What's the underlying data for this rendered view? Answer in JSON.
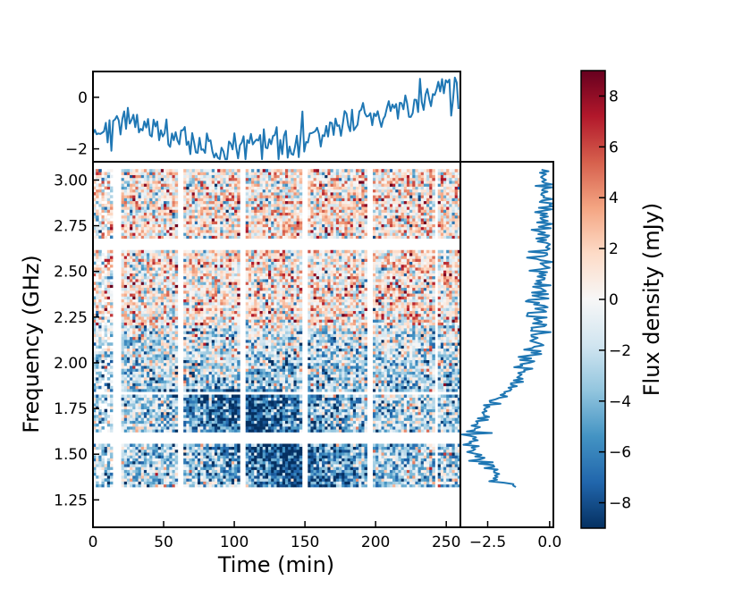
{
  "chart_data": {
    "type": "heatmap",
    "main": {
      "xlabel": "Time (min)",
      "ylabel": "Frequency (GHz)",
      "xlim": [
        0,
        260
      ],
      "ylim": [
        1.1,
        3.1
      ],
      "xticks": [
        0,
        50,
        100,
        150,
        200,
        250
      ],
      "yticks": [
        1.25,
        1.5,
        1.75,
        2.0,
        2.25,
        2.5,
        2.75,
        3.0
      ],
      "ytick_labels": [
        "1.25",
        "1.50",
        "1.75",
        "2.00",
        "2.25",
        "2.50",
        "2.75",
        "3.00"
      ],
      "time_blocks": [
        [
          0,
          15
        ],
        [
          20,
          61
        ],
        [
          64,
          104
        ],
        [
          109,
          148
        ],
        [
          153,
          194
        ],
        [
          198,
          242
        ],
        [
          245,
          260
        ]
      ],
      "freq_bands": [
        [
          1.32,
          1.55
        ],
        [
          1.62,
          1.82
        ],
        [
          1.84,
          2.62
        ],
        [
          2.68,
          3.06
        ]
      ]
    },
    "top_panel": {
      "type": "line",
      "description_series": "frequency-averaged light curve",
      "ylim": [
        -2.5,
        1.0
      ],
      "yticks": [
        -2,
        0
      ],
      "ytick_labels": [
        "−2",
        "0"
      ],
      "x": [
        0,
        10,
        20,
        30,
        40,
        50,
        60,
        70,
        80,
        90,
        100,
        110,
        120,
        130,
        140,
        150,
        160,
        170,
        180,
        190,
        200,
        210,
        220,
        230,
        240,
        250,
        260
      ],
      "y": [
        -1.2,
        -1.4,
        -0.9,
        -1.0,
        -1.2,
        -1.4,
        -1.5,
        -1.7,
        -2.0,
        -2.2,
        -1.9,
        -1.6,
        -1.7,
        -1.8,
        -1.7,
        -1.6,
        -1.4,
        -1.2,
        -1.0,
        -0.8,
        -0.7,
        -0.5,
        -0.3,
        -0.2,
        0.0,
        0.2,
        0.2
      ],
      "noise": 0.35
    },
    "right_panel": {
      "type": "line",
      "description_series": "time-averaged spectrum",
      "xlim": [
        -3.6,
        0.15
      ],
      "xticks": [
        -2.5,
        0.0
      ],
      "xtick_labels": [
        "−2.5",
        "0.0"
      ],
      "freq": [
        1.32,
        1.38,
        1.44,
        1.5,
        1.55,
        1.62,
        1.68,
        1.74,
        1.8,
        1.86,
        1.92,
        1.98,
        2.05,
        2.15,
        2.25,
        2.35,
        2.45,
        2.55,
        2.62,
        2.68,
        2.75,
        2.85,
        2.95,
        3.05
      ],
      "flux": [
        -1.6,
        -2.1,
        -2.6,
        -3.0,
        -3.2,
        -3.1,
        -2.9,
        -2.5,
        -2.0,
        -1.6,
        -1.2,
        -0.9,
        -0.7,
        -0.5,
        -0.45,
        -0.4,
        -0.4,
        -0.35,
        -0.3,
        -0.25,
        -0.3,
        -0.2,
        -0.15,
        -0.1
      ],
      "noise": 0.25
    },
    "colorbar": {
      "label": "Flux density (mJy)",
      "vmin": -9,
      "vmax": 9,
      "ticks": [
        -8,
        -6,
        -4,
        -2,
        0,
        2,
        4,
        6,
        8
      ],
      "tick_labels": [
        "−8",
        "−6",
        "−4",
        "−2",
        "0",
        "2",
        "4",
        "6",
        "8"
      ],
      "colormap": "RdBu_r",
      "colors": [
        "#053061",
        "#2166ac",
        "#4393c3",
        "#92c5de",
        "#d1e5f0",
        "#f7f7f7",
        "#fddbc7",
        "#f4a582",
        "#d6604d",
        "#b2182b",
        "#67001f"
      ]
    }
  }
}
